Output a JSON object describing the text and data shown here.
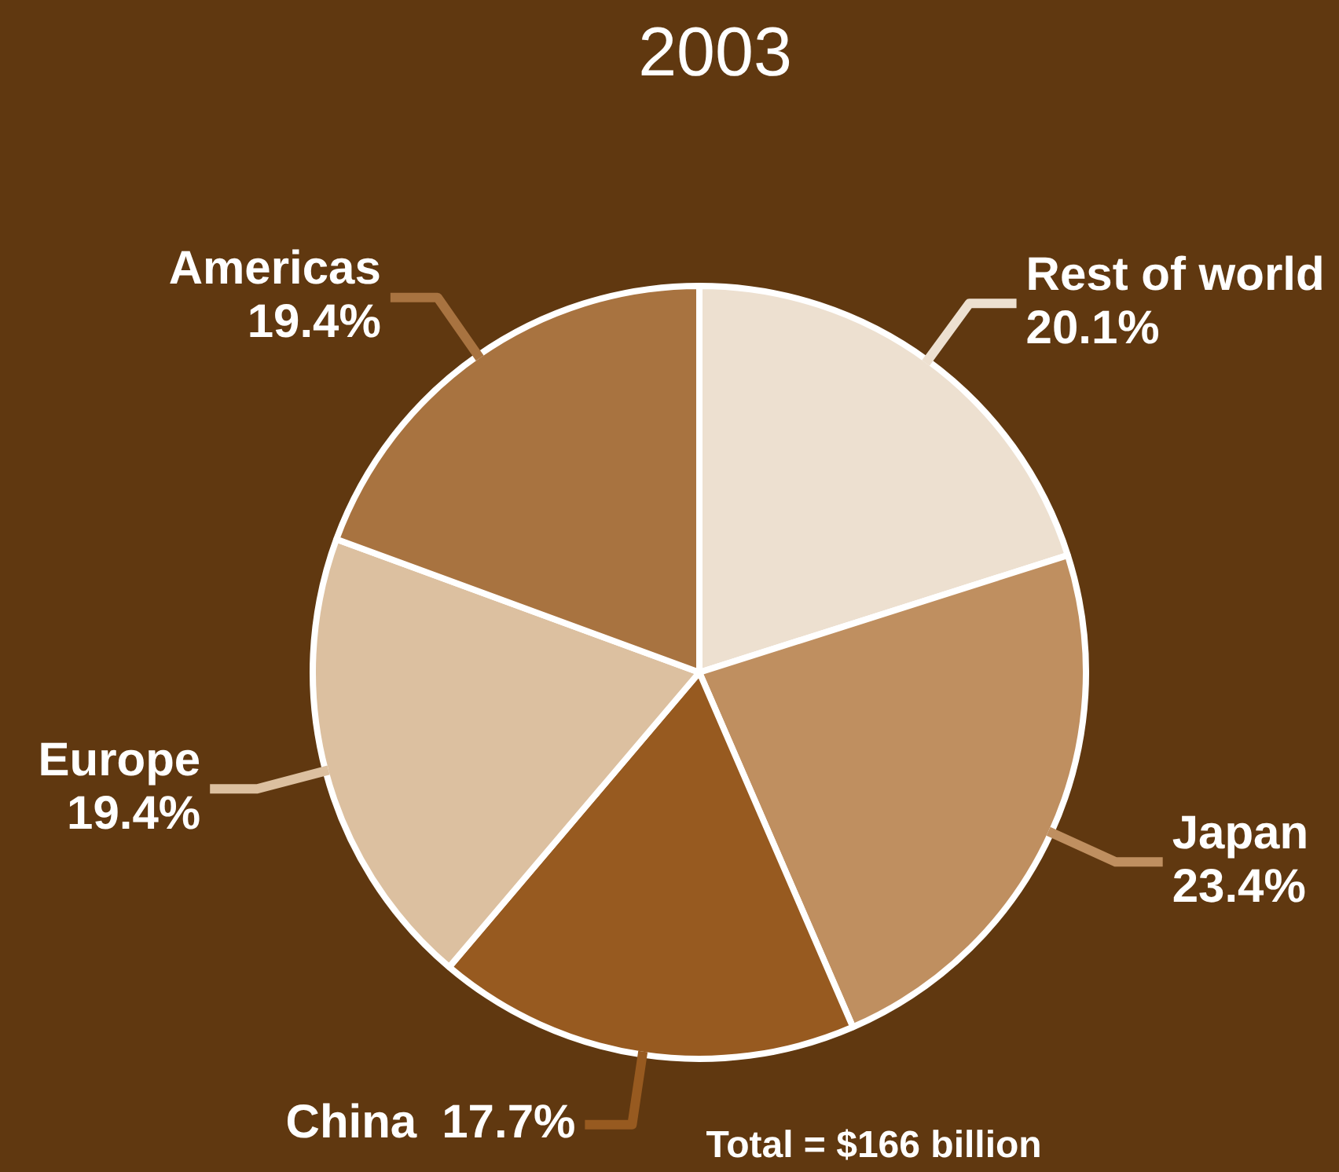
{
  "chart_data": {
    "type": "pie",
    "title": "2003",
    "categories": [
      "Rest of world",
      "Japan",
      "China",
      "Europe",
      "Americas"
    ],
    "values": [
      20.1,
      23.4,
      17.7,
      19.4,
      19.4
    ],
    "colors": [
      "#ede0d0",
      "#bf8f60",
      "#975a20",
      "#dcc0a0",
      "#a87340"
    ],
    "value_labels": [
      "20.1%",
      "23.4%",
      "17.7%",
      "19.4%",
      "19.4%"
    ],
    "legend": false,
    "annotations": [
      "Total = $166 billion"
    ]
  }
}
